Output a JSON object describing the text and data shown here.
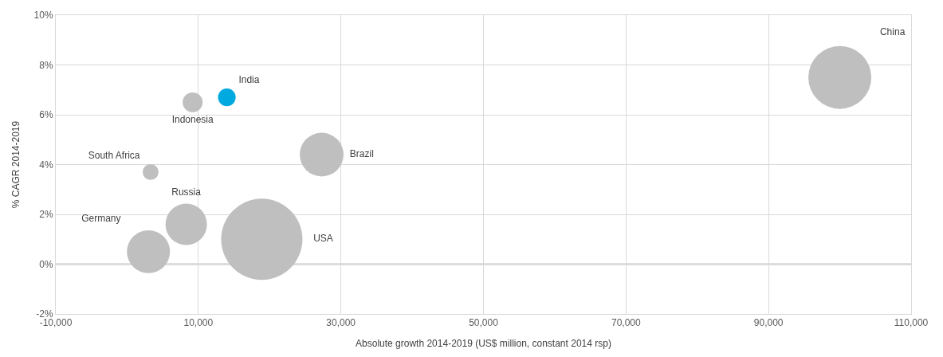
{
  "chart_data": {
    "type": "bubble",
    "xlabel": "Absolute growth 2014-2019 (US$ million, constant 2014 rsp)",
    "ylabel": "% CAGR 2014-2019",
    "xlim": [
      -10000,
      110000
    ],
    "xticks": [
      {
        "value": -10000,
        "label": "-10,000"
      },
      {
        "value": 10000,
        "label": "10,000"
      },
      {
        "value": 30000,
        "label": "30,000"
      },
      {
        "value": 50000,
        "label": "50,000"
      },
      {
        "value": 70000,
        "label": "70,000"
      },
      {
        "value": 90000,
        "label": "90,000"
      },
      {
        "value": 110000,
        "label": "110,000"
      }
    ],
    "ylim": [
      -2,
      10
    ],
    "yticks": [
      {
        "value": -2,
        "label": "-2%"
      },
      {
        "value": 0,
        "label": "0%"
      },
      {
        "value": 2,
        "label": "2%"
      },
      {
        "value": 4,
        "label": "4%"
      },
      {
        "value": 6,
        "label": "6%"
      },
      {
        "value": 8,
        "label": "8%"
      },
      {
        "value": 10,
        "label": "10%"
      }
    ],
    "grid": true,
    "legend": false,
    "ref_lines": [
      {
        "axis": "y",
        "value": 0,
        "label": null,
        "color": "#808080"
      }
    ],
    "series": [
      {
        "name": "China",
        "color": "#bfbfbf",
        "x": [
          100000
        ],
        "values": [
          7.5
        ],
        "sizes": [
          0.6
        ]
      },
      {
        "name": "India",
        "color": "#00a9e0",
        "x": [
          14000
        ],
        "values": [
          6.7
        ],
        "sizes": [
          0.047
        ]
      },
      {
        "name": "Indonesia",
        "color": "#bfbfbf",
        "x": [
          9200
        ],
        "values": [
          6.5
        ],
        "sizes": [
          0.06
        ]
      },
      {
        "name": "South Africa",
        "color": "#bfbfbf",
        "x": [
          3300
        ],
        "values": [
          3.7
        ],
        "sizes": [
          0.038
        ]
      },
      {
        "name": "Brazil",
        "color": "#bfbfbf",
        "x": [
          27300
        ],
        "values": [
          4.4
        ],
        "sizes": [
          0.29
        ]
      },
      {
        "name": "Russia",
        "color": "#bfbfbf",
        "x": [
          8300
        ],
        "values": [
          1.6
        ],
        "sizes": [
          0.26
        ]
      },
      {
        "name": "Germany",
        "color": "#bfbfbf",
        "x": [
          3000
        ],
        "values": [
          0.5
        ],
        "sizes": [
          0.28
        ]
      },
      {
        "name": "USA",
        "color": "#bfbfbf",
        "x": [
          18900
        ],
        "values": [
          1.0
        ],
        "sizes": [
          1
        ]
      }
    ]
  }
}
